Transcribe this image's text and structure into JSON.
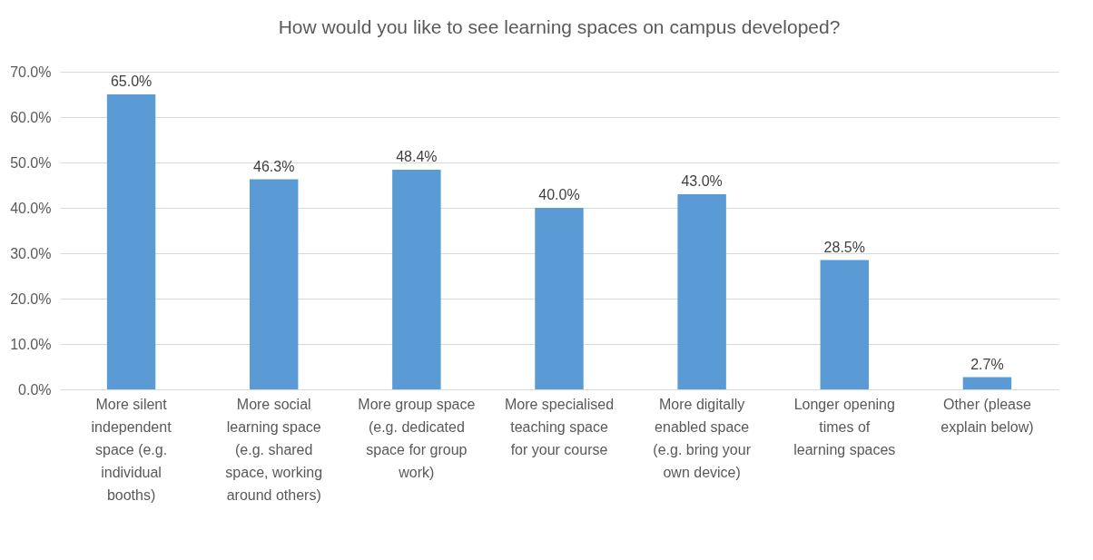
{
  "chart_data": {
    "type": "bar",
    "title": "How would you like to see learning spaces on campus developed?",
    "categories": [
      "More silent independent space (e.g. individual booths)",
      "More social learning space (e.g. shared space, working around others)",
      "More group space (e.g. dedicated space for group work)",
      "More specialised teaching space for your  course",
      "More digitally enabled space (e.g. bring your own device)",
      "Longer opening times of learning spaces",
      "Other (please explain below)"
    ],
    "values": [
      65.0,
      46.3,
      48.4,
      40.0,
      43.0,
      28.5,
      2.7
    ],
    "value_labels": [
      "65.0%",
      "46.3%",
      "48.4%",
      "40.0%",
      "43.0%",
      "28.5%",
      "2.7%"
    ],
    "color": "#5b9bd5",
    "ylim": [
      0,
      70
    ],
    "yticks": [
      {
        "value": 0,
        "label": "0.0%"
      },
      {
        "value": 10,
        "label": "10.0%"
      },
      {
        "value": 20,
        "label": "20.0%"
      },
      {
        "value": 30,
        "label": "30.0%"
      },
      {
        "value": 40,
        "label": "40.0%"
      },
      {
        "value": 50,
        "label": "50.0%"
      },
      {
        "value": 60,
        "label": "60.0%"
      },
      {
        "value": 70,
        "label": "70.0%"
      }
    ],
    "grid": "y"
  }
}
